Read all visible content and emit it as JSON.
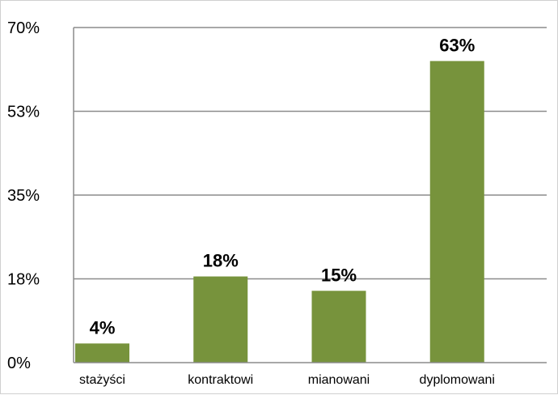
{
  "chart_data": {
    "type": "bar",
    "categories": [
      "stażyści",
      "kontraktowi",
      "mianowani",
      "dyplomowani"
    ],
    "values": [
      4,
      18,
      15,
      63
    ],
    "data_labels": [
      "4%",
      "18%",
      "15%",
      "63%"
    ],
    "title": "",
    "xlabel": "",
    "ylabel": "",
    "ylim": [
      0,
      70
    ],
    "yticks": [
      0,
      17.5,
      35,
      52.5,
      70
    ],
    "ytick_labels": [
      "0%",
      "18%",
      "35%",
      "53%",
      "70%"
    ],
    "grid": true,
    "legend": "none",
    "bar_color": "#77933c",
    "grid_color": "#8c8c8c",
    "axis_color": "#8c8c8c"
  }
}
